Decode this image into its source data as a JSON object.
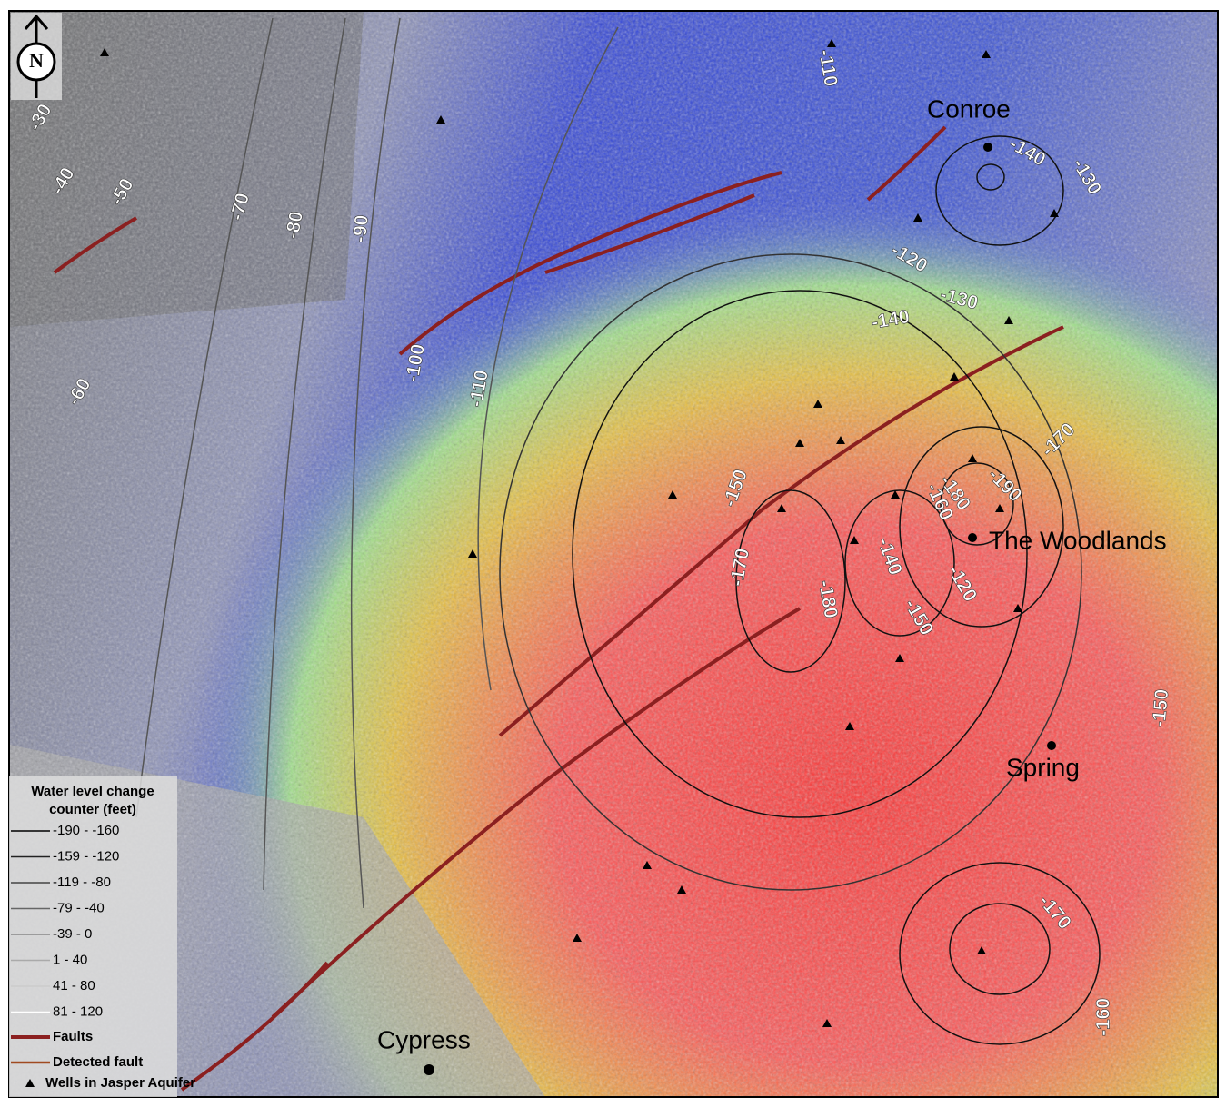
{
  "north_arrow": "N",
  "contour_labels": [
    "-110",
    "-30",
    "-40",
    "-50",
    "-70",
    "-80",
    "-90",
    "-60",
    "-100",
    "-110",
    "-140",
    "-130",
    "-120",
    "-130",
    "-140",
    "-170",
    "-190",
    "-180",
    "-160",
    "-150",
    "-170",
    "-180",
    "-140",
    "-120",
    "-150",
    "-150",
    "-170",
    "-160"
  ],
  "places": [
    "Conroe",
    "The Woodlands",
    "Spring",
    "Cypress"
  ],
  "legend": {
    "title_lines": [
      "Water level change",
      "counter (feet)"
    ],
    "contours": [
      "-190 - -160",
      "-159 - -120",
      "-119 - -80",
      "-79 - -40",
      "-39 - 0",
      "1 - 40",
      "41 - 80",
      "81 - 120"
    ],
    "faults": "Faults",
    "detected_fault": "Detected fault",
    "wells": "Wells in Jasper Aquifer"
  }
}
